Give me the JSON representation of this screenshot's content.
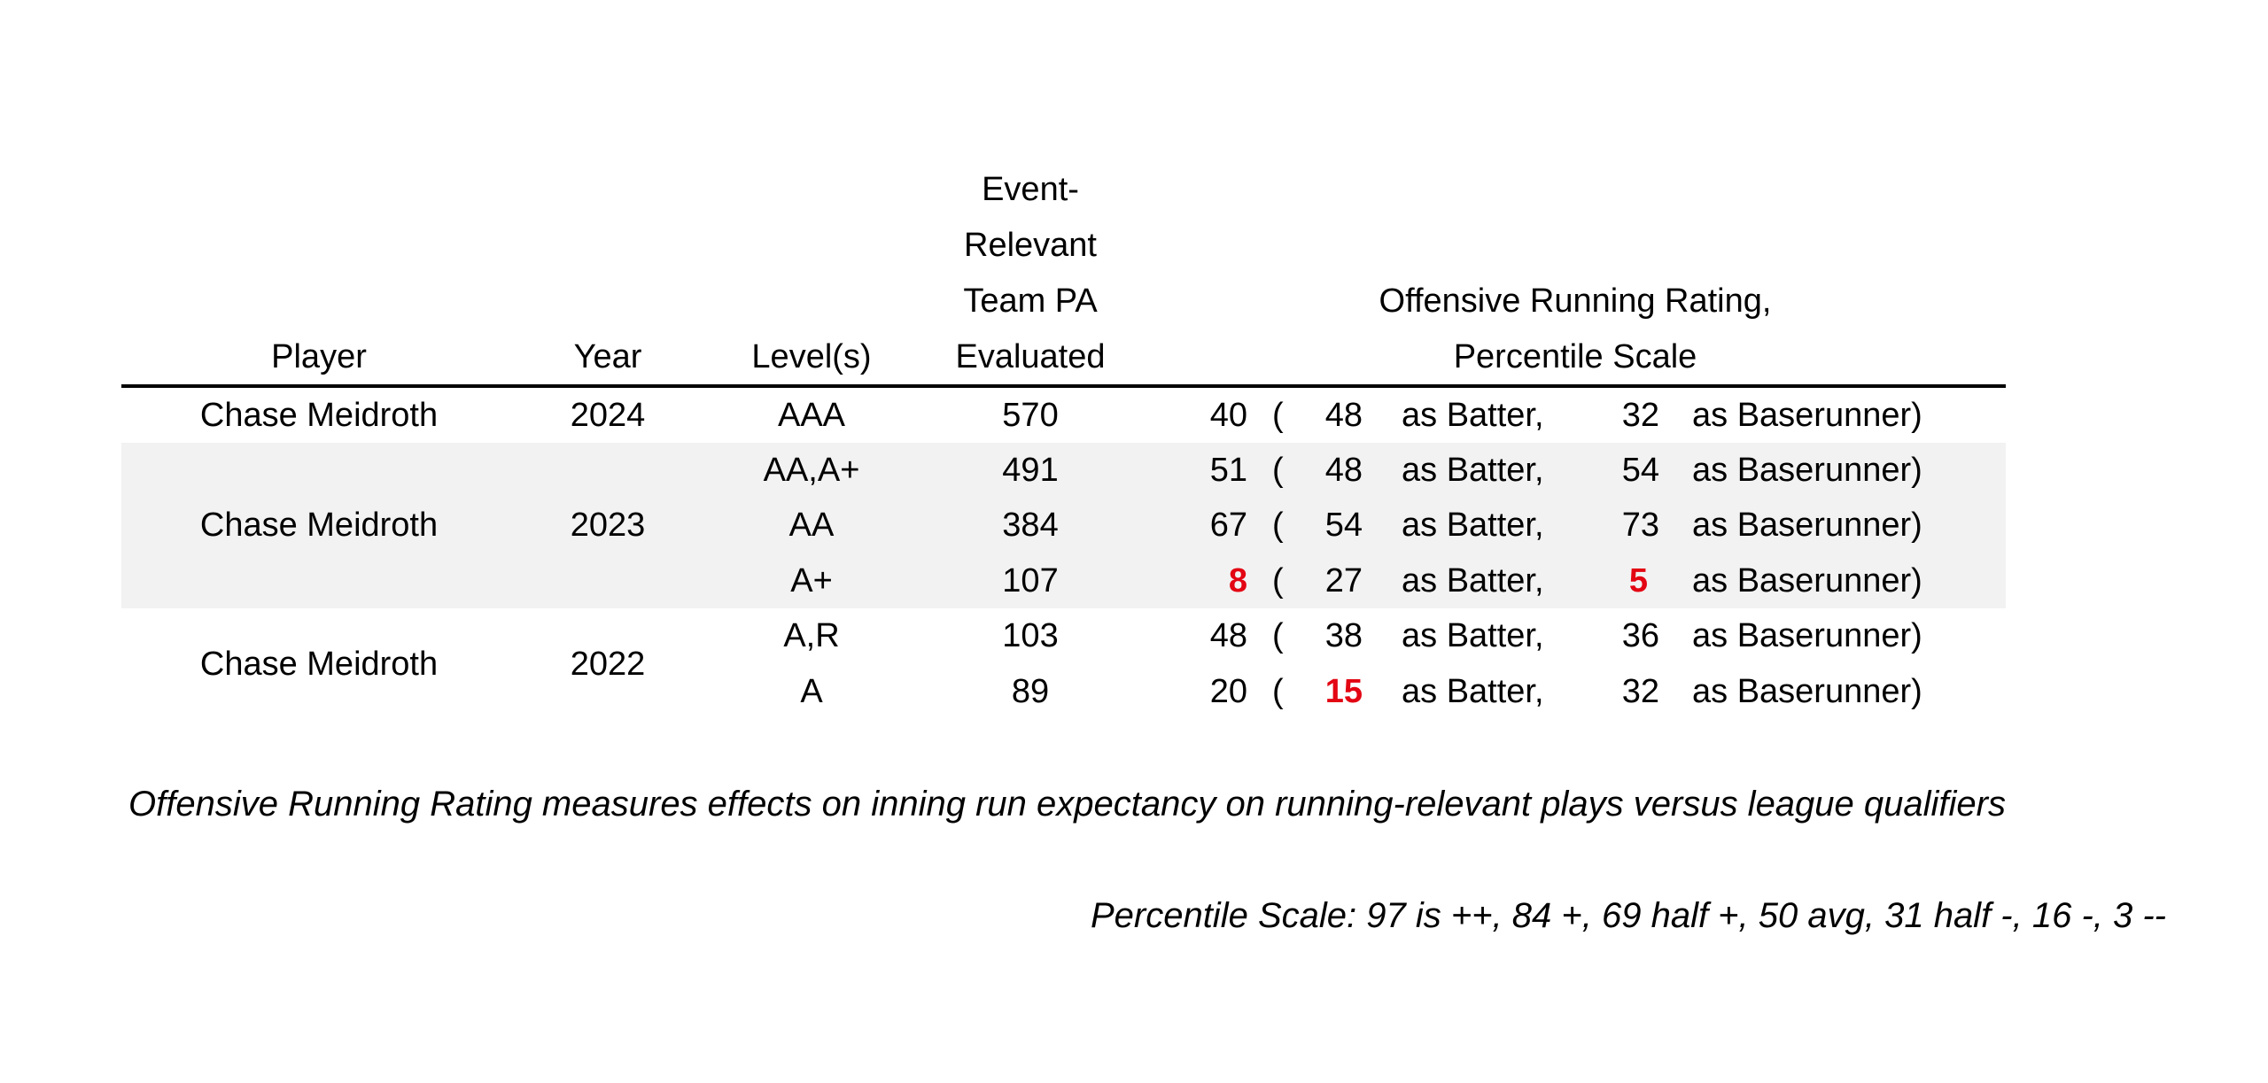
{
  "headers": {
    "player": "Player",
    "year": "Year",
    "levels": "Level(s)",
    "pa_line1": "Event-",
    "pa_line2": "Relevant",
    "pa_line3": "Team PA",
    "pa_line4": "Evaluated",
    "rating_line1": "Offensive Running Rating,",
    "rating_line2": "Percentile Scale"
  },
  "labels": {
    "open_paren": "(",
    "as_batter": "as Batter,",
    "as_baserunner": "as Baserunner)"
  },
  "colors": {
    "highlight": "#e30613",
    "shade": "#f2f2f2"
  },
  "groups": [
    {
      "player": "Chase Meidroth",
      "year": "2024"
    },
    {
      "player": "Chase Meidroth",
      "year": "2023"
    },
    {
      "player": "Chase Meidroth",
      "year": "2022"
    }
  ],
  "rows": [
    {
      "level": "AAA",
      "pa": "570",
      "overall": "40",
      "batter": "48",
      "runner": "32"
    },
    {
      "level": "AA,A+",
      "pa": "491",
      "overall": "51",
      "batter": "48",
      "runner": "54"
    },
    {
      "level": "AA",
      "pa": "384",
      "overall": "67",
      "batter": "54",
      "runner": "73"
    },
    {
      "level": "A+",
      "pa": "107",
      "overall": "8",
      "batter": "27",
      "runner": "5"
    },
    {
      "level": "A,R",
      "pa": "103",
      "overall": "48",
      "batter": "38",
      "runner": "36"
    },
    {
      "level": "A",
      "pa": "89",
      "overall": "20",
      "batter": "15",
      "runner": "32"
    }
  ],
  "footnotes": {
    "definition": "Offensive Running Rating measures effects on inning run expectancy on running-relevant plays versus league qualifiers",
    "scale": "Percentile Scale: 97 is ++, 84 +, 69 half +, 50 avg, 31 half -, 16 -, 3 --"
  }
}
